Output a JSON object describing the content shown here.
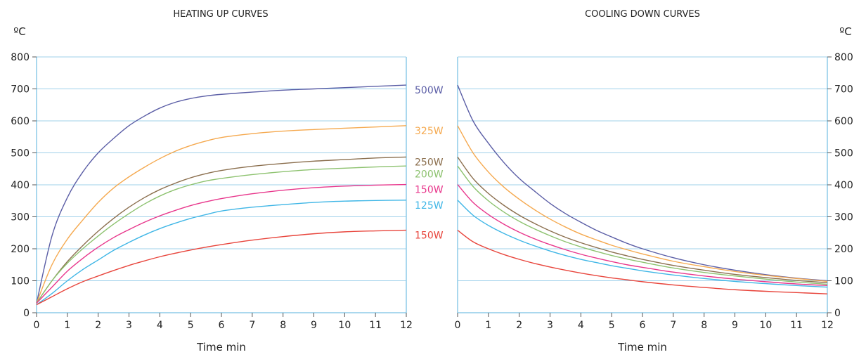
{
  "chart_data": [
    {
      "type": "line",
      "title": "HEATING UP CURVES",
      "unit": "ºC",
      "xlabel": "Time min",
      "xlim": [
        0,
        12
      ],
      "ylim": [
        0,
        800
      ],
      "xticks": [
        0,
        1,
        2,
        3,
        4,
        5,
        6,
        7,
        8,
        9,
        10,
        11,
        12
      ],
      "yticks": [
        0,
        100,
        200,
        300,
        400,
        500,
        600,
        700,
        800
      ],
      "grid": true,
      "y_axis_side": "left",
      "x": [
        0,
        0.5,
        1,
        1.5,
        2,
        2.5,
        3,
        3.5,
        4,
        4.5,
        5,
        5.5,
        6,
        7,
        8,
        9,
        10,
        11,
        12
      ],
      "series": [
        {
          "name": "500W",
          "color": "#5b5ea6",
          "values": [
            30,
            240,
            360,
            440,
            500,
            545,
            585,
            615,
            640,
            658,
            670,
            678,
            683,
            690,
            696,
            700,
            704,
            708,
            712
          ]
        },
        {
          "name": "325W",
          "color": "#f5a94f",
          "values": [
            30,
            150,
            230,
            290,
            345,
            390,
            425,
            455,
            482,
            505,
            523,
            537,
            548,
            560,
            568,
            573,
            577,
            581,
            585
          ]
        },
        {
          "name": "250W",
          "color": "#8b6f4e",
          "values": [
            30,
            100,
            160,
            210,
            255,
            295,
            330,
            360,
            385,
            405,
            422,
            435,
            445,
            458,
            467,
            474,
            479,
            484,
            487
          ]
        },
        {
          "name": "200W",
          "color": "#8dc26f",
          "values": [
            30,
            100,
            155,
            200,
            240,
            277,
            310,
            340,
            365,
            385,
            400,
            412,
            420,
            432,
            441,
            448,
            452,
            456,
            459
          ]
        },
        {
          "name": "150W",
          "color": "#e8378c",
          "values": [
            30,
            80,
            130,
            170,
            205,
            235,
            260,
            283,
            303,
            320,
            335,
            347,
            357,
            372,
            383,
            391,
            396,
            399,
            401
          ]
        },
        {
          "name": "125W",
          "color": "#3fb6e6",
          "values": [
            25,
            60,
            100,
            135,
            165,
            195,
            220,
            243,
            263,
            280,
            295,
            307,
            318,
            330,
            338,
            345,
            349,
            351,
            352
          ]
        },
        {
          "name": "150W",
          "color": "#e8453c",
          "values": [
            25,
            50,
            75,
            97,
            115,
            132,
            148,
            162,
            175,
            186,
            196,
            205,
            213,
            227,
            238,
            247,
            253,
            256,
            258
          ]
        }
      ]
    },
    {
      "type": "line",
      "title": "COOLING DOWN CURVES",
      "unit": "ºC",
      "xlabel": "Time min",
      "xlim": [
        0,
        12
      ],
      "ylim": [
        0,
        800
      ],
      "xticks": [
        0,
        1,
        2,
        3,
        4,
        5,
        6,
        7,
        8,
        9,
        10,
        11,
        12
      ],
      "yticks": [
        0,
        100,
        200,
        300,
        400,
        500,
        600,
        700,
        800
      ],
      "grid": true,
      "y_axis_side": "right",
      "x": [
        0,
        0.5,
        1,
        1.5,
        2,
        2.5,
        3,
        3.5,
        4,
        4.5,
        5,
        5.5,
        6,
        7,
        8,
        9,
        10,
        11,
        12
      ],
      "series": [
        {
          "name": "500W",
          "color": "#5b5ea6",
          "values": [
            712,
            600,
            530,
            470,
            420,
            380,
            342,
            310,
            283,
            258,
            237,
            217,
            200,
            172,
            150,
            133,
            119,
            108,
            100
          ]
        },
        {
          "name": "325W",
          "color": "#f5a94f",
          "values": [
            585,
            500,
            440,
            393,
            355,
            322,
            293,
            268,
            246,
            228,
            211,
            197,
            184,
            161,
            144,
            129,
            117,
            107,
            98
          ]
        },
        {
          "name": "250W",
          "color": "#8b6f4e",
          "values": [
            487,
            420,
            373,
            336,
            305,
            279,
            256,
            236,
            219,
            204,
            190,
            178,
            167,
            148,
            133,
            120,
            110,
            101,
            94
          ]
        },
        {
          "name": "200W",
          "color": "#8dc26f",
          "values": [
            459,
            395,
            350,
            315,
            286,
            262,
            241,
            222,
            206,
            192,
            179,
            168,
            158,
            140,
            126,
            115,
            105,
            96,
            89
          ]
        },
        {
          "name": "150W",
          "color": "#e8378c",
          "values": [
            401,
            345,
            307,
            277,
            252,
            231,
            213,
            197,
            183,
            171,
            160,
            150,
            142,
            127,
            115,
            105,
            97,
            90,
            85
          ]
        },
        {
          "name": "125W",
          "color": "#3fb6e6",
          "values": [
            352,
            305,
            273,
            248,
            227,
            209,
            193,
            179,
            167,
            157,
            147,
            139,
            131,
            118,
            107,
            98,
            91,
            85,
            80
          ]
        },
        {
          "name": "150W",
          "color": "#e8453c",
          "values": [
            258,
            222,
            200,
            182,
            167,
            154,
            143,
            133,
            124,
            116,
            109,
            103,
            97,
            87,
            79,
            72,
            67,
            63,
            59
          ]
        }
      ]
    }
  ]
}
